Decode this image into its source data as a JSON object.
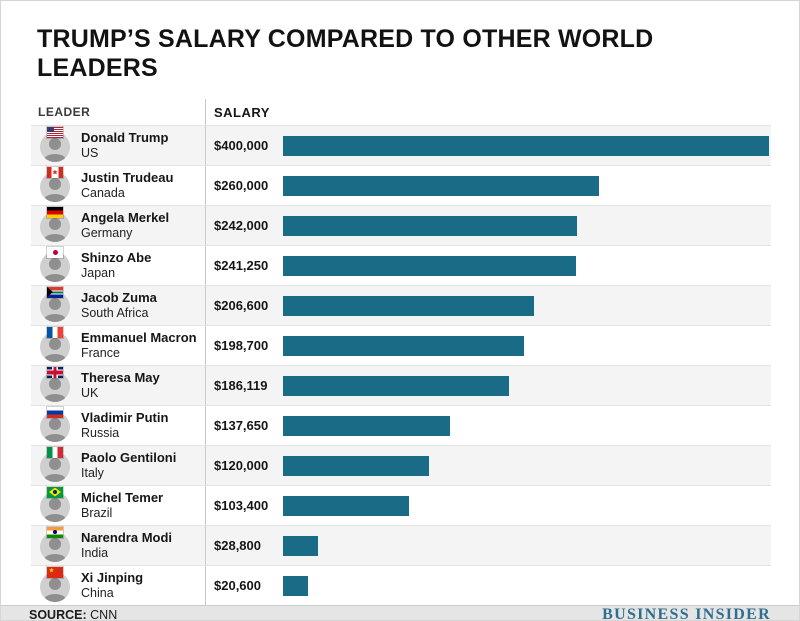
{
  "title": "TRUMP’S SALARY COMPARED TO OTHER WORLD LEADERS",
  "columns": {
    "leader": "LEADER",
    "salary": "SALARY"
  },
  "leaders": [
    {
      "name": "Donald Trump",
      "country": "US",
      "salary": "$400,000",
      "value": 400000,
      "flag": "us"
    },
    {
      "name": "Justin Trudeau",
      "country": "Canada",
      "salary": "$260,000",
      "value": 260000,
      "flag": "canada"
    },
    {
      "name": "Angela Merkel",
      "country": "Germany",
      "salary": "$242,000",
      "value": 242000,
      "flag": "germany"
    },
    {
      "name": "Shinzo Abe",
      "country": "Japan",
      "salary": "$241,250",
      "value": 241250,
      "flag": "japan"
    },
    {
      "name": "Jacob Zuma",
      "country": "South Africa",
      "salary": "$206,600",
      "value": 206600,
      "flag": "southafrica"
    },
    {
      "name": "Emmanuel Macron",
      "country": "France",
      "salary": "$198,700",
      "value": 198700,
      "flag": "france"
    },
    {
      "name": "Theresa May",
      "country": "UK",
      "salary": "$186,119",
      "value": 186119,
      "flag": "uk"
    },
    {
      "name": "Vladimir Putin",
      "country": "Russia",
      "salary": "$137,650",
      "value": 137650,
      "flag": "russia"
    },
    {
      "name": "Paolo Gentiloni",
      "country": "Italy",
      "salary": "$120,000",
      "value": 120000,
      "flag": "italy"
    },
    {
      "name": "Michel Temer",
      "country": "Brazil",
      "salary": "$103,400",
      "value": 103400,
      "flag": "brazil"
    },
    {
      "name": "Narendra Modi",
      "country": "India",
      "salary": "$28,800",
      "value": 28800,
      "flag": "india"
    },
    {
      "name": "Xi Jinping",
      "country": "China",
      "salary": "$20,600",
      "value": 20600,
      "flag": "china"
    }
  ],
  "chart_data": {
    "type": "bar",
    "orientation": "horizontal",
    "title": "TRUMP’S SALARY COMPARED TO OTHER WORLD LEADERS",
    "categories": [
      "Donald Trump (US)",
      "Justin Trudeau (Canada)",
      "Angela Merkel (Germany)",
      "Shinzo Abe (Japan)",
      "Jacob Zuma (South Africa)",
      "Emmanuel Macron (France)",
      "Theresa May (UK)",
      "Vladimir Putin (Russia)",
      "Paolo Gentiloni (Italy)",
      "Michel Temer (Brazil)",
      "Narendra Modi (India)",
      "Xi Jinping (China)"
    ],
    "values": [
      400000,
      260000,
      242000,
      241250,
      206600,
      198700,
      186119,
      137650,
      120000,
      103400,
      28800,
      20600
    ],
    "data_labels": [
      "$400,000",
      "$260,000",
      "$242,000",
      "$241,250",
      "$206,600",
      "$198,700",
      "$186,119",
      "$137,650",
      "$120,000",
      "$103,400",
      "$28,800",
      "$20,600"
    ],
    "xlabel": "",
    "ylabel": "",
    "xlim": [
      0,
      400000
    ],
    "grid": false,
    "legend": "none"
  },
  "footer": {
    "source_label": "SOURCE:",
    "source_value": "CNN",
    "brand": "BUSINESS INSIDER"
  },
  "colors": {
    "bar": "#1a6b85",
    "brand": "#2f6e8f"
  }
}
